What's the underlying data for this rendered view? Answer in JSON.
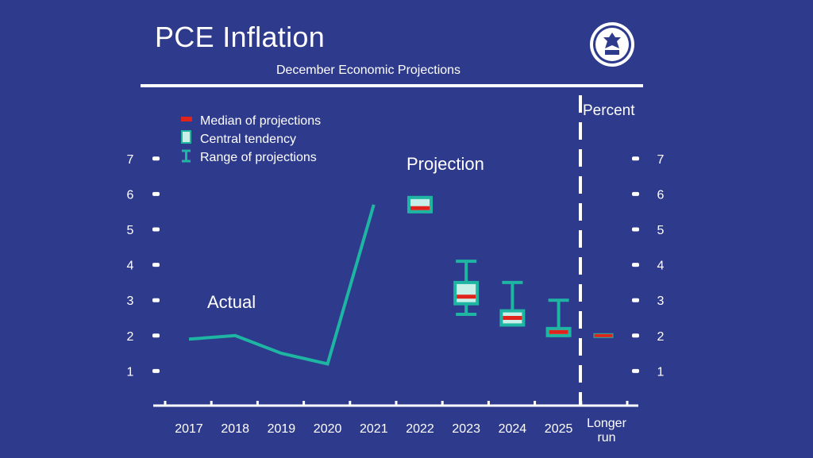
{
  "title": "PCE Inflation",
  "subtitle": "December Economic Projections",
  "unit_label": "Percent",
  "colors": {
    "background": "#2e3a8c",
    "teal": "#1fb5a3",
    "central_fill": "#c9f0e8",
    "median": "#e0241c",
    "white": "#ffffff"
  },
  "legend": {
    "median": "Median of projections",
    "central": "Central tendency",
    "range": "Range of projections"
  },
  "annotations": {
    "actual": "Actual",
    "projection": "Projection"
  },
  "chart_data": {
    "type": "line",
    "title": "PCE Inflation",
    "subtitle": "December Economic Projections",
    "ylabel": "Percent",
    "ylim": [
      0,
      7
    ],
    "yticks": [
      1,
      2,
      3,
      4,
      5,
      6,
      7
    ],
    "categories": [
      "2017",
      "2018",
      "2019",
      "2020",
      "2021",
      "2022",
      "2023",
      "2024",
      "2025",
      "Longer run"
    ],
    "actual": {
      "x": [
        "2017",
        "2018",
        "2019",
        "2020",
        "2021"
      ],
      "values": [
        1.9,
        2.0,
        1.5,
        1.2,
        5.7
      ]
    },
    "projections": [
      {
        "year": "2022",
        "median": 5.6,
        "central": [
          5.5,
          5.9
        ],
        "range": [
          5.5,
          5.9
        ]
      },
      {
        "year": "2023",
        "median": 3.1,
        "central": [
          2.9,
          3.5
        ],
        "range": [
          2.6,
          4.1
        ]
      },
      {
        "year": "2024",
        "median": 2.5,
        "central": [
          2.3,
          2.7
        ],
        "range": [
          2.3,
          3.5
        ]
      },
      {
        "year": "2025",
        "median": 2.1,
        "central": [
          2.0,
          2.2
        ],
        "range": [
          2.0,
          3.0
        ]
      },
      {
        "year": "Longer run",
        "median": 2.0,
        "central": [
          2.0,
          2.0
        ],
        "range": [
          2.0,
          2.0
        ]
      }
    ],
    "legend_position": "top-left",
    "grid": false
  }
}
